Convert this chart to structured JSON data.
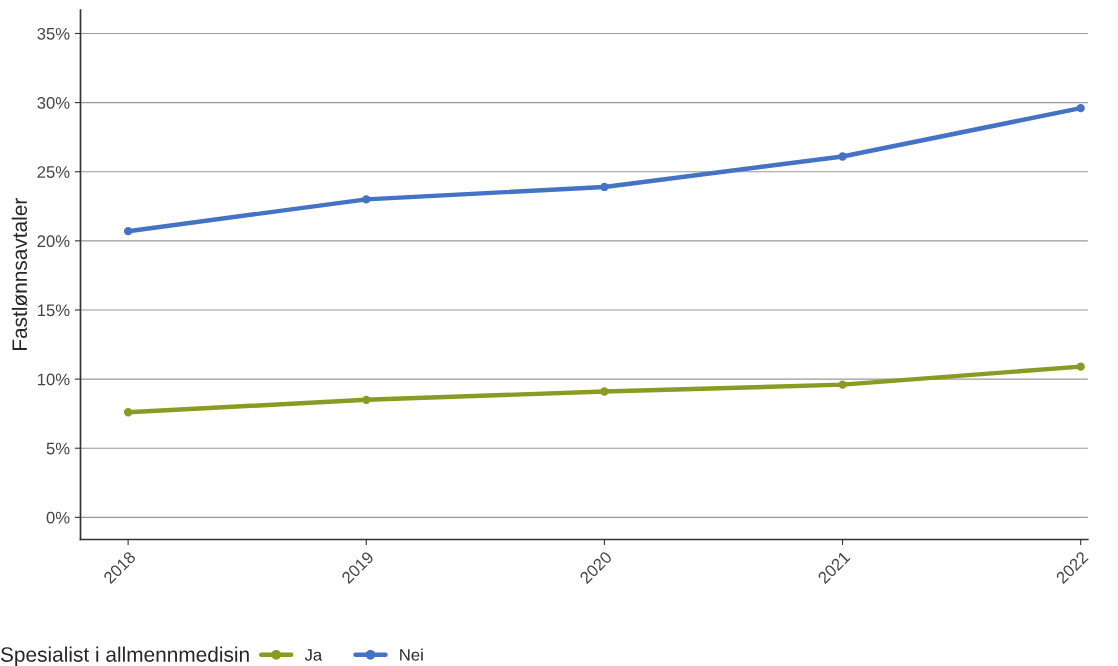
{
  "chart_data": {
    "type": "line",
    "ylabel": "Fastlønnsavtaler",
    "legend_title": "Spesialist i allmennmedisin",
    "categories": [
      "2018",
      "2019",
      "2020",
      "2021",
      "2022"
    ],
    "series": [
      {
        "name": "Ja",
        "color": "#8a9a22",
        "values": [
          7.6,
          8.5,
          9.1,
          9.6,
          10.9
        ]
      },
      {
        "name": "Nei",
        "color": "#4472c4",
        "values": [
          20.7,
          23.0,
          23.9,
          26.1,
          29.6
        ]
      }
    ],
    "ylim": [
      -1.6,
      36.7
    ],
    "yticks": [
      {
        "value": 0,
        "label": "0%"
      },
      {
        "value": 5,
        "label": "5%"
      },
      {
        "value": 10,
        "label": "10%"
      },
      {
        "value": 15,
        "label": "15%"
      },
      {
        "value": 20,
        "label": "20%"
      },
      {
        "value": 25,
        "label": "25%"
      },
      {
        "value": 30,
        "label": "30%"
      },
      {
        "value": 35,
        "label": "35%"
      }
    ],
    "grid": "y",
    "legend": "bottom",
    "marker": "circle",
    "line_style": "solid"
  }
}
